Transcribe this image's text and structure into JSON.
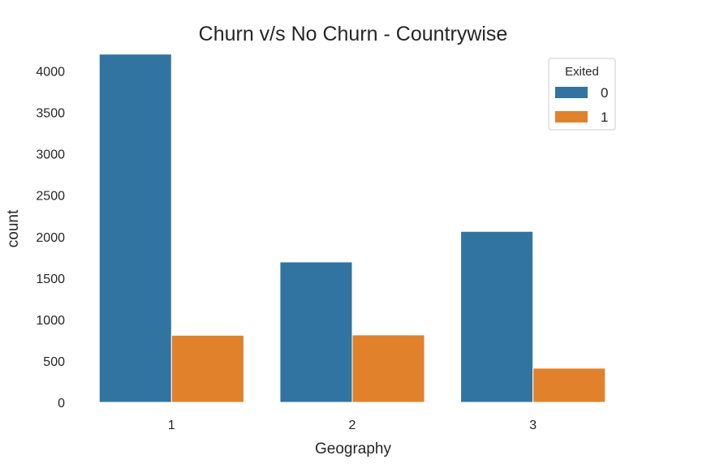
{
  "chart_data": {
    "type": "bar",
    "title": "Churn v/s No Churn - Countrywise",
    "xlabel": "Geography",
    "ylabel": "count",
    "categories": [
      "1",
      "2",
      "3"
    ],
    "series": [
      {
        "name": "0",
        "values": [
          4204,
          1695,
          2064
        ],
        "color": "#3274a1"
      },
      {
        "name": "1",
        "values": [
          810,
          814,
          413
        ],
        "color": "#e1812c"
      }
    ],
    "ylim": [
      0,
      4250
    ],
    "yticks": [
      0,
      500,
      1000,
      1500,
      2000,
      2500,
      3000,
      3500,
      4000
    ],
    "grid": false,
    "legend": {
      "title": "Exited",
      "placement": "top-right"
    }
  }
}
